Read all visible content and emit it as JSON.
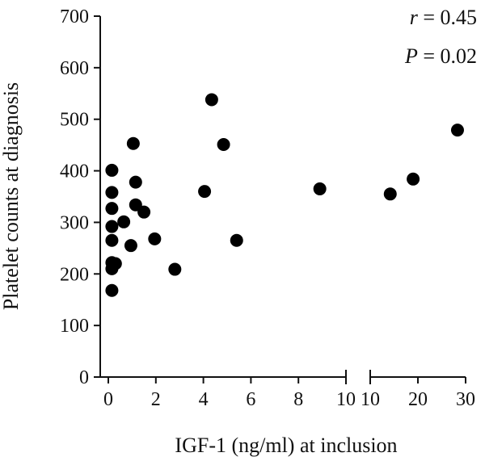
{
  "chart_data": {
    "type": "scatter",
    "xlabel": "IGF-1 (ng/ml) at inclusion",
    "ylabel": "Platelet counts at diagnosis",
    "ylim": [
      0,
      700
    ],
    "yticks": [
      "0",
      "100",
      "200",
      "300",
      "400",
      "500",
      "600",
      "700"
    ],
    "x_axis_break": true,
    "x_segments": [
      {
        "range": [
          0,
          10
        ],
        "ticks": [
          "0",
          "2",
          "4",
          "6",
          "8",
          "10"
        ]
      },
      {
        "range": [
          10,
          30
        ],
        "ticks": [
          "10",
          "20",
          "30"
        ]
      }
    ],
    "annotations": [
      {
        "var": "r",
        "text": " = 0.45"
      },
      {
        "var": "P",
        "text": " = 0.02"
      }
    ],
    "points": [
      {
        "x": 0.15,
        "y": 168
      },
      {
        "x": 0.15,
        "y": 210
      },
      {
        "x": 0.15,
        "y": 222
      },
      {
        "x": 0.3,
        "y": 220
      },
      {
        "x": 0.15,
        "y": 265
      },
      {
        "x": 0.15,
        "y": 292
      },
      {
        "x": 0.15,
        "y": 327
      },
      {
        "x": 0.15,
        "y": 358
      },
      {
        "x": 0.15,
        "y": 401
      },
      {
        "x": 0.65,
        "y": 301
      },
      {
        "x": 0.95,
        "y": 255
      },
      {
        "x": 1.05,
        "y": 453
      },
      {
        "x": 1.15,
        "y": 378
      },
      {
        "x": 1.15,
        "y": 334
      },
      {
        "x": 1.5,
        "y": 320
      },
      {
        "x": 1.95,
        "y": 268
      },
      {
        "x": 2.8,
        "y": 209
      },
      {
        "x": 4.05,
        "y": 360
      },
      {
        "x": 4.35,
        "y": 538
      },
      {
        "x": 4.85,
        "y": 451
      },
      {
        "x": 5.4,
        "y": 265
      },
      {
        "x": 8.9,
        "y": 365
      },
      {
        "x": 14.2,
        "y": 355
      },
      {
        "x": 19.0,
        "y": 384
      },
      {
        "x": 28.3,
        "y": 479
      }
    ]
  }
}
